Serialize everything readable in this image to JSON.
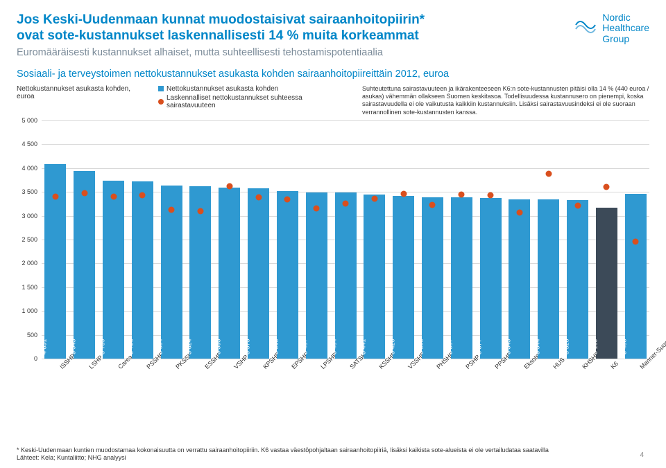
{
  "colors": {
    "brand": "#0086c8",
    "bar": "#2f99d1",
    "bar_special": "#3c4a58",
    "dot": "#d94f1e",
    "subtitle": "#7b8b99",
    "text": "#333333",
    "grid": "#d8d8d8",
    "background": "#ffffff"
  },
  "header": {
    "title_l1": "Jos Keski-Uudenmaan kunnat muodostaisivat sairaanhoitopiirin*",
    "title_l2": "ovat sote-kustannukset laskennallisesti 14 % muita korkeammat",
    "subtitle": "Euromääräisesti kustannukset alhaiset, mutta suhteellisesti tehostamispotentiaalia",
    "logo_l1": "Nordic",
    "logo_l2": "Healthcare",
    "logo_l3": "Group"
  },
  "section_title": "Sosiaali- ja terveystoimen nettokustannukset asukasta kohden sairaanhoitopiireittäin 2012, euroa",
  "axis_label": "Nettokustannukset asukasta kohden, euroa",
  "legend": {
    "bar": "Nettokustannukset asukasta kohden",
    "dot": "Laskennalliset nettokustannukset suhteessa sairastavuuteen"
  },
  "note": "Suhteutettuna sairastavuuteen ja ikärakenteeseen K6:n sote-kustannusten pitäisi olla 14 % (440 euroa / asukas) vähemmän ollakseen Suomen keskitasoa. Todellisuudessa kustannusero on pienempi, koska sairastavuudella ei ole vaikutusta kaikkiin kustannuksiin. Lisäksi sairastavuusindeksi ei ole suoraan verrannollinen sote-kustannusten kanssa.",
  "chart": {
    "type": "bar",
    "ylim": [
      0,
      5000
    ],
    "ytick_step": 500,
    "bar_color": "#2f99d1",
    "bar_width_pct": 78,
    "series": [
      {
        "label": "ISSHP",
        "value": 4091,
        "dot": 3400
      },
      {
        "label": "LSHP",
        "value": 3945,
        "dot": 3480
      },
      {
        "label": "Carea",
        "value": 3739,
        "dot": 3400
      },
      {
        "label": "PSSHP",
        "value": 3726,
        "dot": 3430
      },
      {
        "label": "PKSSK",
        "value": 3634,
        "dot": 3130
      },
      {
        "label": "ESSHP",
        "value": 3624,
        "dot": 3100
      },
      {
        "label": "VSHP",
        "value": 3593,
        "dot": 3620
      },
      {
        "label": "KPSHP",
        "value": 3573,
        "dot": 3380
      },
      {
        "label": "EPSHP",
        "value": 3513,
        "dot": 3340
      },
      {
        "label": "LPSHP",
        "value": 3487,
        "dot": 3160
      },
      {
        "label": "SATSHP",
        "value": 3484,
        "dot": 3250
      },
      {
        "label": "KSSHP",
        "value": 3441,
        "dot": 3360
      },
      {
        "label": "VSSHP",
        "value": 3420,
        "dot": 3460
      },
      {
        "label": "PHSHP",
        "value": 3393,
        "dot": 3220
      },
      {
        "label": "PSHP",
        "value": 3387,
        "dot": 3440
      },
      {
        "label": "PPSHP",
        "value": 3377,
        "dot": 3430
      },
      {
        "label": "Eksote",
        "value": 3345,
        "dot": 3060
      },
      {
        "label": "HUS",
        "value": 3344,
        "dot": 3880
      },
      {
        "label": "KHSHP",
        "value": 3328,
        "dot": 3210
      },
      {
        "label": "K6",
        "value": 3169,
        "dot": 3610,
        "color": "#3c4a58"
      },
      {
        "label": "Manner-Suomi pl.…",
        "value": 3453,
        "dot": 2460
      }
    ]
  },
  "footnote": {
    "line1": "* Keski-Uudenmaan kuntien muodostamaa kokonaisuutta on verrattu sairaanhoitopiiriin. K6 vastaa väestöpohjaltaan sairaanhoitopiiriä, lisäksi kaikista sote-alueista ei ole vertailudataa saatavilla",
    "sources": "Lähteet: Kela; Kuntaliitto; NHG analyysi",
    "page": "4"
  }
}
